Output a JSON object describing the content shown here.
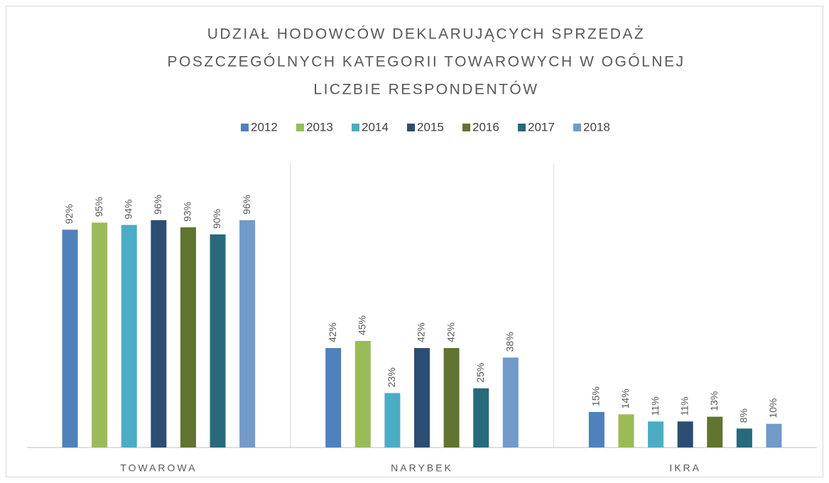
{
  "chart_data": {
    "type": "bar",
    "title": [
      "UDZIAŁ HODOWCÓW DEKLARUJĄCYCH SPRZEDAŻ",
      "POSZCZEGÓLNYCH KATEGORII TOWAROWYCH W OGÓLNEJ",
      "LICZBIE RESPONDENTÓW"
    ],
    "categories": [
      "TOWAROWA",
      "NARYBEK",
      "IKRA"
    ],
    "series": [
      {
        "name": "2012",
        "color": "#4f81bd",
        "values": [
          92,
          42,
          15
        ],
        "value_labels": [
          "92%",
          "42%",
          "15%"
        ]
      },
      {
        "name": "2013",
        "color": "#9bbb59",
        "values": [
          95,
          45,
          14
        ],
        "value_labels": [
          "95%",
          "45%",
          "14%"
        ]
      },
      {
        "name": "2014",
        "color": "#4bacc6",
        "values": [
          94,
          23,
          11
        ],
        "value_labels": [
          "94%",
          "23%",
          "11%"
        ]
      },
      {
        "name": "2015",
        "color": "#2c4d75",
        "values": [
          96,
          42,
          11
        ],
        "value_labels": [
          "96%",
          "42%",
          "11%"
        ]
      },
      {
        "name": "2016",
        "color": "#5f7530",
        "values": [
          93,
          42,
          13
        ],
        "value_labels": [
          "93%",
          "42%",
          "13%"
        ]
      },
      {
        "name": "2017",
        "color": "#276a7c",
        "values": [
          90,
          25,
          8
        ],
        "value_labels": [
          "90%",
          "25%",
          "8%"
        ]
      },
      {
        "name": "2018",
        "color": "#729aca",
        "values": [
          96,
          38,
          10
        ],
        "value_labels": [
          "96%",
          "38%",
          "10%"
        ]
      }
    ],
    "legend": "top"
  }
}
